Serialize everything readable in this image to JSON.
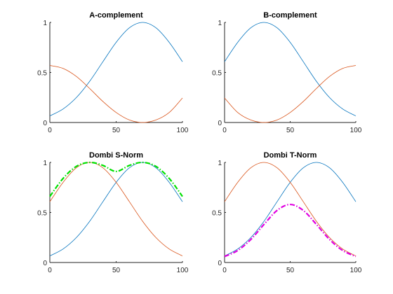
{
  "chart_data": [
    {
      "type": "line",
      "title": "A-complement",
      "xlabel": "",
      "ylabel": "",
      "xlim": [
        0,
        100
      ],
      "ylim": [
        0,
        1
      ],
      "xticks": [
        "0",
        "50",
        "100"
      ],
      "yticks": [
        "0",
        "0.5",
        "1"
      ],
      "grid": false,
      "series": [
        {
          "values": [
            [
              0,
              0.066
            ],
            [
              10,
              0.135
            ],
            [
              20,
              0.249
            ],
            [
              30,
              0.411
            ],
            [
              40,
              0.607
            ],
            [
              50,
              0.801
            ],
            [
              60,
              0.946
            ],
            [
              70,
              1.0
            ],
            [
              80,
              0.946
            ],
            [
              90,
              0.801
            ],
            [
              100,
              0.607
            ]
          ],
          "color": "#0072BD"
        },
        {
          "values": [
            [
              0,
              0.57
            ],
            [
              10,
              0.54
            ],
            [
              20,
              0.46
            ],
            [
              30,
              0.34
            ],
            [
              40,
              0.21
            ],
            [
              50,
              0.1
            ],
            [
              60,
              0.025
            ],
            [
              70,
              0.0
            ],
            [
              80,
              0.025
            ],
            [
              90,
              0.1
            ],
            [
              100,
              0.245
            ]
          ],
          "color": "#D95319"
        }
      ]
    },
    {
      "type": "line",
      "title": "B-complement",
      "xlabel": "",
      "ylabel": "",
      "xlim": [
        0,
        100
      ],
      "ylim": [
        0,
        1
      ],
      "xticks": [
        "0",
        "50",
        "100"
      ],
      "yticks": [
        "0",
        "0.5",
        "1"
      ],
      "grid": false,
      "series": [
        {
          "values": [
            [
              0,
              0.607
            ],
            [
              10,
              0.801
            ],
            [
              20,
              0.946
            ],
            [
              30,
              1.0
            ],
            [
              40,
              0.946
            ],
            [
              50,
              0.801
            ],
            [
              60,
              0.607
            ],
            [
              70,
              0.411
            ],
            [
              80,
              0.249
            ],
            [
              90,
              0.135
            ],
            [
              100,
              0.066
            ]
          ],
          "color": "#0072BD"
        },
        {
          "values": [
            [
              0,
              0.245
            ],
            [
              10,
              0.1
            ],
            [
              20,
              0.025
            ],
            [
              30,
              0.0
            ],
            [
              40,
              0.025
            ],
            [
              50,
              0.1
            ],
            [
              60,
              0.21
            ],
            [
              70,
              0.34
            ],
            [
              80,
              0.46
            ],
            [
              90,
              0.54
            ],
            [
              100,
              0.57
            ]
          ],
          "color": "#D95319"
        }
      ]
    },
    {
      "type": "line",
      "title": "Dombi S-Norm",
      "xlabel": "",
      "ylabel": "",
      "xlim": [
        0,
        100
      ],
      "ylim": [
        0,
        1
      ],
      "xticks": [
        "0",
        "50",
        "100"
      ],
      "yticks": [
        "0",
        "0.5",
        "1"
      ],
      "grid": false,
      "series": [
        {
          "values": [
            [
              0,
              0.066
            ],
            [
              10,
              0.135
            ],
            [
              20,
              0.249
            ],
            [
              30,
              0.411
            ],
            [
              40,
              0.607
            ],
            [
              50,
              0.801
            ],
            [
              60,
              0.946
            ],
            [
              70,
              1.0
            ],
            [
              80,
              0.946
            ],
            [
              90,
              0.801
            ],
            [
              100,
              0.607
            ]
          ],
          "color": "#0072BD"
        },
        {
          "values": [
            [
              0,
              0.607
            ],
            [
              10,
              0.801
            ],
            [
              20,
              0.946
            ],
            [
              30,
              1.0
            ],
            [
              40,
              0.946
            ],
            [
              50,
              0.801
            ],
            [
              60,
              0.607
            ],
            [
              70,
              0.411
            ],
            [
              80,
              0.249
            ],
            [
              90,
              0.135
            ],
            [
              100,
              0.066
            ]
          ],
          "color": "#D95319"
        },
        {
          "values": [
            [
              0,
              0.66
            ],
            [
              10,
              0.84
            ],
            [
              20,
              0.96
            ],
            [
              30,
              1.0
            ],
            [
              40,
              0.97
            ],
            [
              50,
              0.91
            ],
            [
              60,
              0.97
            ],
            [
              70,
              1.0
            ],
            [
              80,
              0.96
            ],
            [
              90,
              0.84
            ],
            [
              100,
              0.66
            ]
          ],
          "color": "#00E000",
          "dash": "dashdot"
        }
      ]
    },
    {
      "type": "line",
      "title": "Dombi T-Norm",
      "xlabel": "",
      "ylabel": "",
      "xlim": [
        0,
        100
      ],
      "ylim": [
        0,
        1
      ],
      "xticks": [
        "0",
        "50",
        "100"
      ],
      "yticks": [
        "0",
        "0.5",
        "1"
      ],
      "grid": false,
      "series": [
        {
          "values": [
            [
              0,
              0.066
            ],
            [
              10,
              0.135
            ],
            [
              20,
              0.249
            ],
            [
              30,
              0.411
            ],
            [
              40,
              0.607
            ],
            [
              50,
              0.801
            ],
            [
              60,
              0.946
            ],
            [
              70,
              1.0
            ],
            [
              80,
              0.946
            ],
            [
              90,
              0.801
            ],
            [
              100,
              0.607
            ]
          ],
          "color": "#0072BD"
        },
        {
          "values": [
            [
              0,
              0.607
            ],
            [
              10,
              0.801
            ],
            [
              20,
              0.946
            ],
            [
              30,
              1.0
            ],
            [
              40,
              0.946
            ],
            [
              50,
              0.801
            ],
            [
              60,
              0.607
            ],
            [
              70,
              0.411
            ],
            [
              80,
              0.249
            ],
            [
              90,
              0.135
            ],
            [
              100,
              0.066
            ]
          ],
          "color": "#D95319"
        },
        {
          "values": [
            [
              0,
              0.06
            ],
            [
              10,
              0.12
            ],
            [
              20,
              0.23
            ],
            [
              30,
              0.38
            ],
            [
              40,
              0.52
            ],
            [
              50,
              0.58
            ],
            [
              60,
              0.52
            ],
            [
              70,
              0.38
            ],
            [
              80,
              0.23
            ],
            [
              90,
              0.12
            ],
            [
              100,
              0.06
            ]
          ],
          "color": "#E000E0",
          "dash": "dashdot"
        }
      ]
    }
  ]
}
